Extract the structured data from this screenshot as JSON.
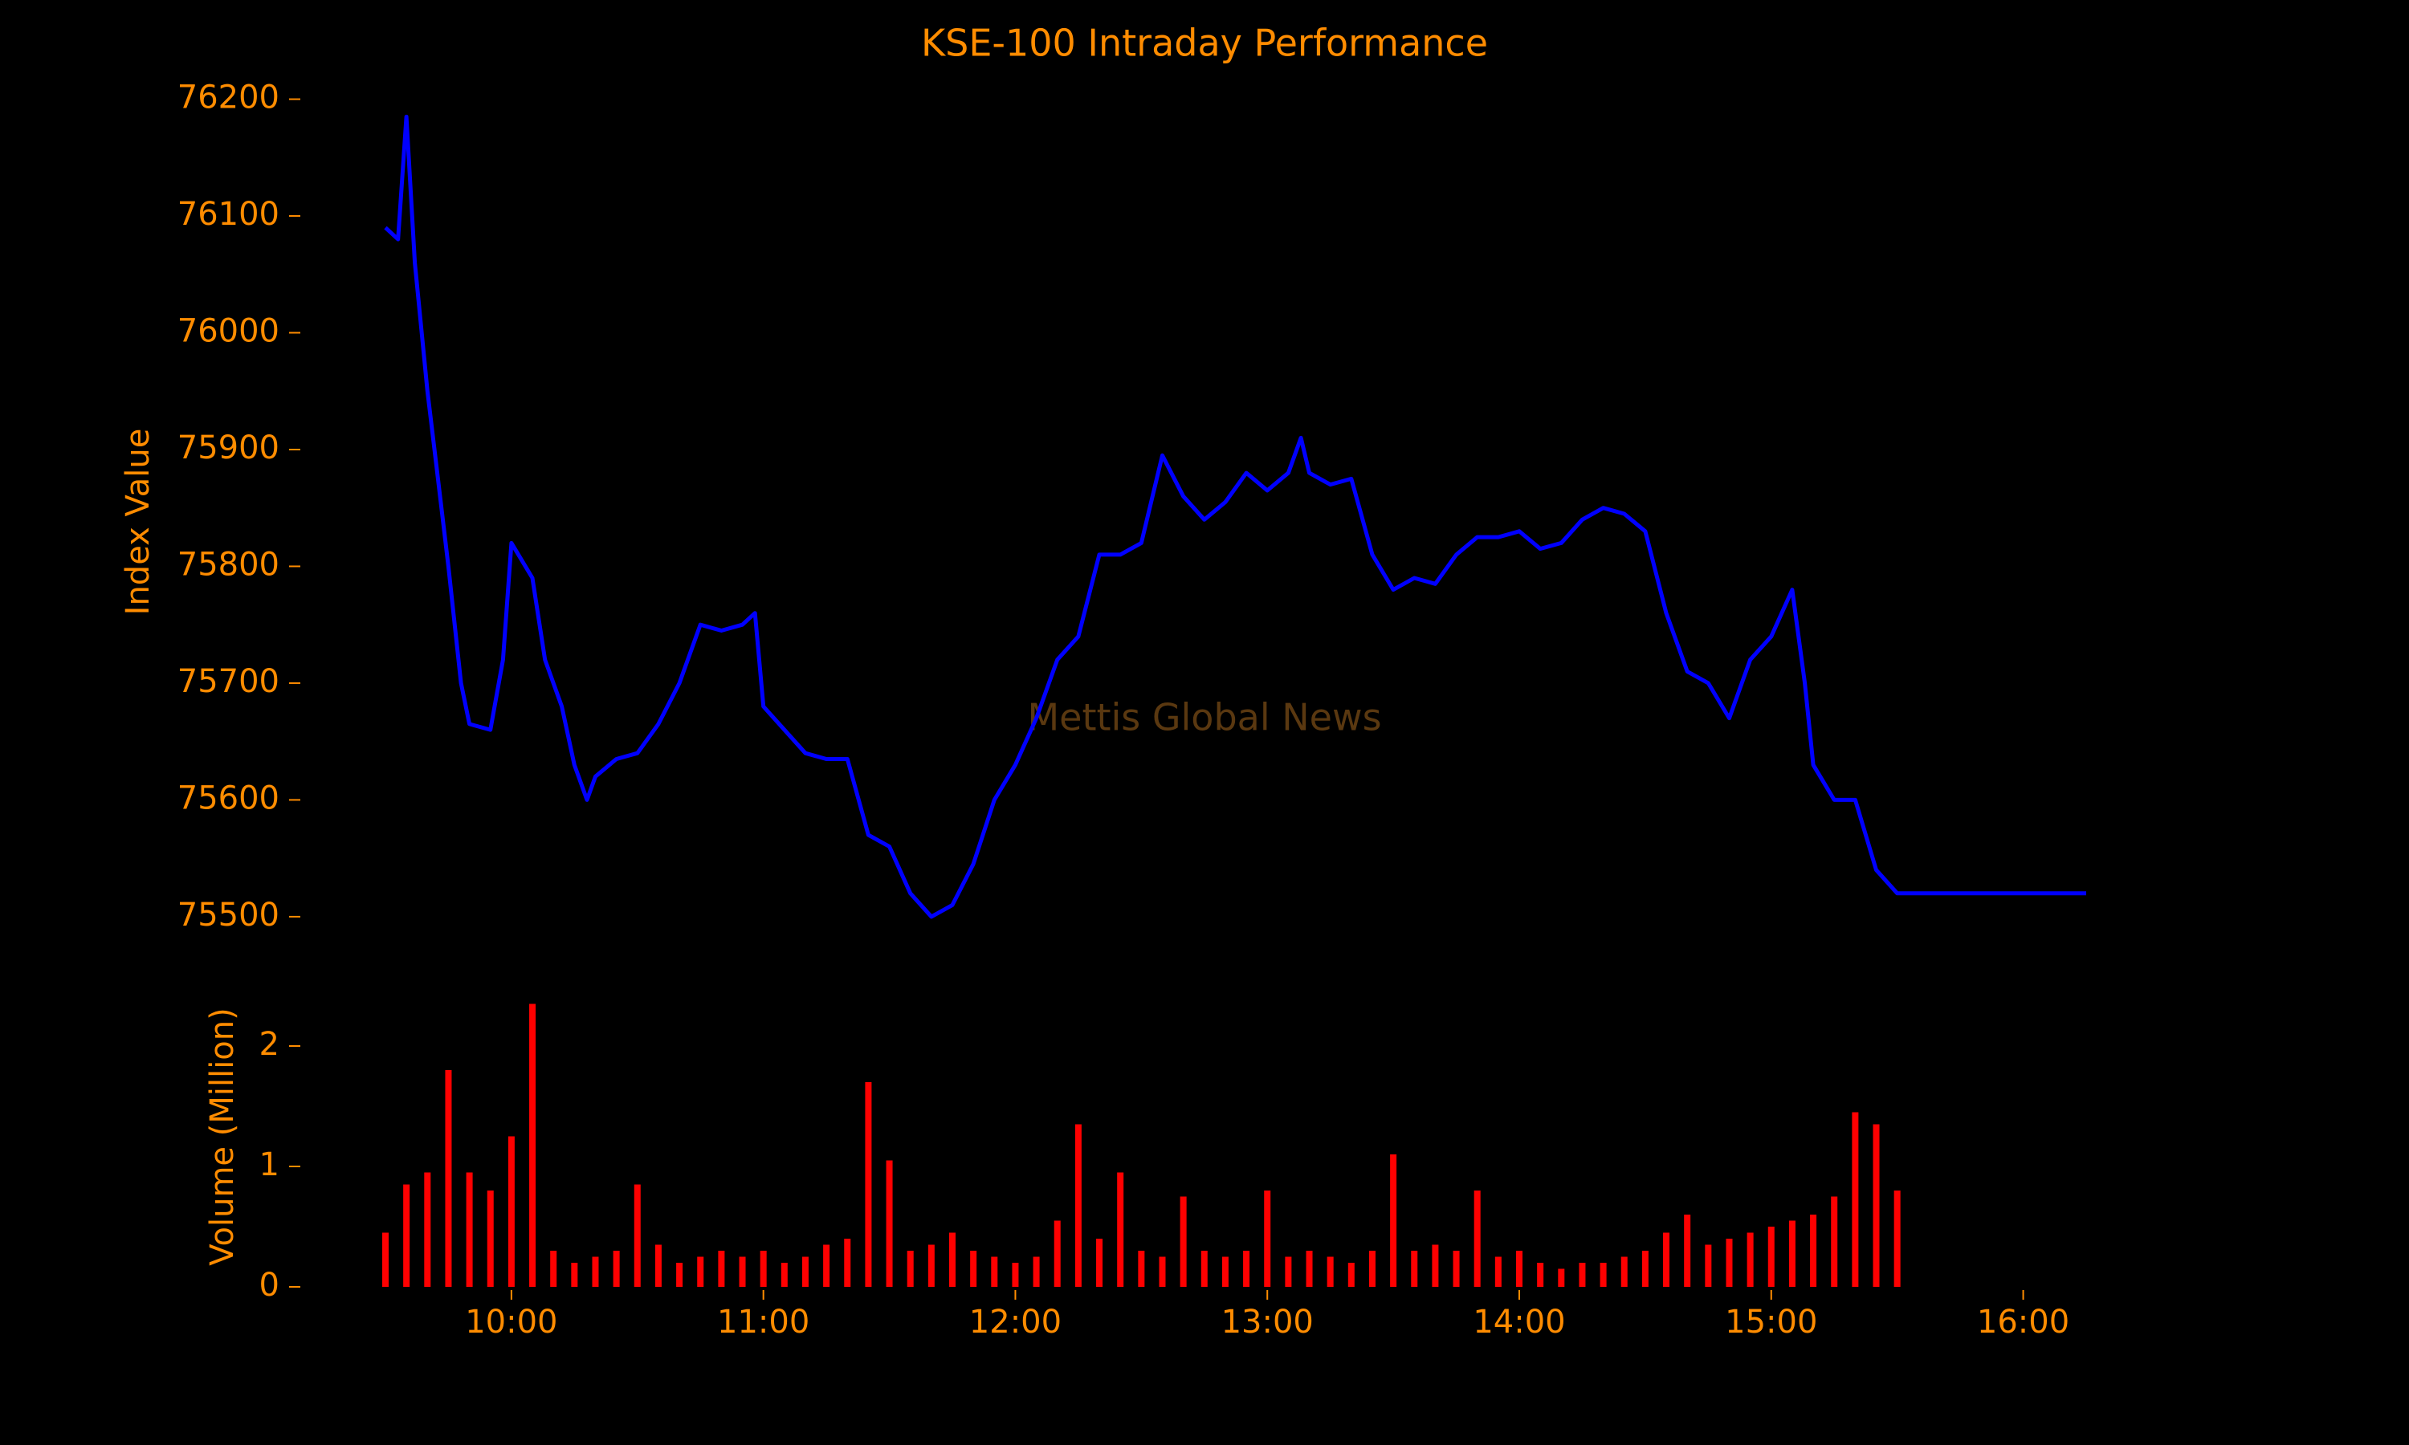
{
  "chart_data": [
    {
      "type": "line",
      "title": "KSE-100 Intraday Performance",
      "ylabel": "Index Value",
      "annotation": "Mettis Global News",
      "color": "#0000ff",
      "x": [
        "09:30",
        "09:33",
        "09:35",
        "09:37",
        "09:40",
        "09:42",
        "09:45",
        "09:48",
        "09:50",
        "09:55",
        "09:58",
        "10:00",
        "10:05",
        "10:08",
        "10:12",
        "10:15",
        "10:18",
        "10:20",
        "10:25",
        "10:30",
        "10:35",
        "10:40",
        "10:45",
        "10:50",
        "10:55",
        "10:58",
        "11:00",
        "11:05",
        "11:10",
        "11:15",
        "11:20",
        "11:25",
        "11:30",
        "11:35",
        "11:40",
        "11:45",
        "11:50",
        "11:55",
        "12:00",
        "12:05",
        "12:10",
        "12:15",
        "12:20",
        "12:25",
        "12:30",
        "12:35",
        "12:40",
        "12:45",
        "12:50",
        "12:55",
        "13:00",
        "13:05",
        "13:08",
        "13:10",
        "13:15",
        "13:20",
        "13:25",
        "13:30",
        "13:35",
        "13:40",
        "13:45",
        "13:50",
        "13:55",
        "14:00",
        "14:05",
        "14:10",
        "14:15",
        "14:20",
        "14:25",
        "14:30",
        "14:35",
        "14:40",
        "14:45",
        "14:50",
        "14:55",
        "15:00",
        "15:05",
        "15:08",
        "15:10",
        "15:15",
        "15:20",
        "15:25",
        "15:30",
        "16:15"
      ],
      "values": [
        76090,
        76080,
        76185,
        76060,
        75950,
        75890,
        75800,
        75700,
        75665,
        75660,
        75720,
        75820,
        75790,
        75720,
        75680,
        75630,
        75600,
        75620,
        75635,
        75640,
        75665,
        75700,
        75750,
        75745,
        75750,
        75760,
        75680,
        75660,
        75640,
        75635,
        75635,
        75570,
        75560,
        75520,
        75500,
        75510,
        75545,
        75600,
        75630,
        75670,
        75720,
        75740,
        75810,
        75810,
        75820,
        75895,
        75860,
        75840,
        75855,
        75880,
        75865,
        75880,
        75910,
        75880,
        75870,
        75875,
        75810,
        75780,
        75790,
        75785,
        75810,
        75825,
        75825,
        75830,
        75815,
        75820,
        75840,
        75850,
        75845,
        75830,
        75760,
        75710,
        75700,
        75670,
        75720,
        75740,
        75780,
        75700,
        75630,
        75600,
        75600,
        75540,
        75520,
        75520
      ],
      "xlim": [
        "09:30",
        "16:15"
      ],
      "ylim": [
        75480,
        76210
      ],
      "yticks": [
        75500,
        75600,
        75700,
        75800,
        75900,
        76000,
        76100,
        76200
      ]
    },
    {
      "type": "bar",
      "ylabel": "Volume (Million)",
      "color": "#ff0000",
      "x": [
        "09:30",
        "09:35",
        "09:40",
        "09:45",
        "09:50",
        "09:55",
        "10:00",
        "10:05",
        "10:10",
        "10:15",
        "10:20",
        "10:25",
        "10:30",
        "10:35",
        "10:40",
        "10:45",
        "10:50",
        "10:55",
        "11:00",
        "11:05",
        "11:10",
        "11:15",
        "11:20",
        "11:25",
        "11:30",
        "11:35",
        "11:40",
        "11:45",
        "11:50",
        "11:55",
        "12:00",
        "12:05",
        "12:10",
        "12:15",
        "12:20",
        "12:25",
        "12:30",
        "12:35",
        "12:40",
        "12:45",
        "12:50",
        "12:55",
        "13:00",
        "13:05",
        "13:10",
        "13:15",
        "13:20",
        "13:25",
        "13:30",
        "13:35",
        "13:40",
        "13:45",
        "13:50",
        "13:55",
        "14:00",
        "14:05",
        "14:10",
        "14:15",
        "14:20",
        "14:25",
        "14:30",
        "14:35",
        "14:40",
        "14:45",
        "14:50",
        "14:55",
        "15:00",
        "15:05",
        "15:10",
        "15:15",
        "15:20",
        "15:25",
        "15:30"
      ],
      "values": [
        0.45,
        0.85,
        0.95,
        1.8,
        0.95,
        0.8,
        1.25,
        2.35,
        0.3,
        0.2,
        0.25,
        0.3,
        0.85,
        0.35,
        0.2,
        0.25,
        0.3,
        0.25,
        0.3,
        0.2,
        0.25,
        0.35,
        0.4,
        1.7,
        1.05,
        0.3,
        0.35,
        0.45,
        0.3,
        0.25,
        0.2,
        0.25,
        0.55,
        1.35,
        0.4,
        0.95,
        0.3,
        0.25,
        0.75,
        0.3,
        0.25,
        0.3,
        0.8,
        0.25,
        0.3,
        0.25,
        0.2,
        0.3,
        1.1,
        0.3,
        0.35,
        0.3,
        0.8,
        0.25,
        0.3,
        0.2,
        0.15,
        0.2,
        0.2,
        0.25,
        0.3,
        0.45,
        0.6,
        0.35,
        0.4,
        0.45,
        0.5,
        0.55,
        0.6,
        0.75,
        1.45,
        1.35,
        0.8
      ],
      "xlim": [
        "09:30",
        "16:15"
      ],
      "ylim": [
        0,
        2.4
      ],
      "yticks": [
        0,
        1,
        2
      ],
      "xticks": [
        "10:00",
        "11:00",
        "12:00",
        "13:00",
        "14:00",
        "15:00",
        "16:00"
      ]
    }
  ]
}
